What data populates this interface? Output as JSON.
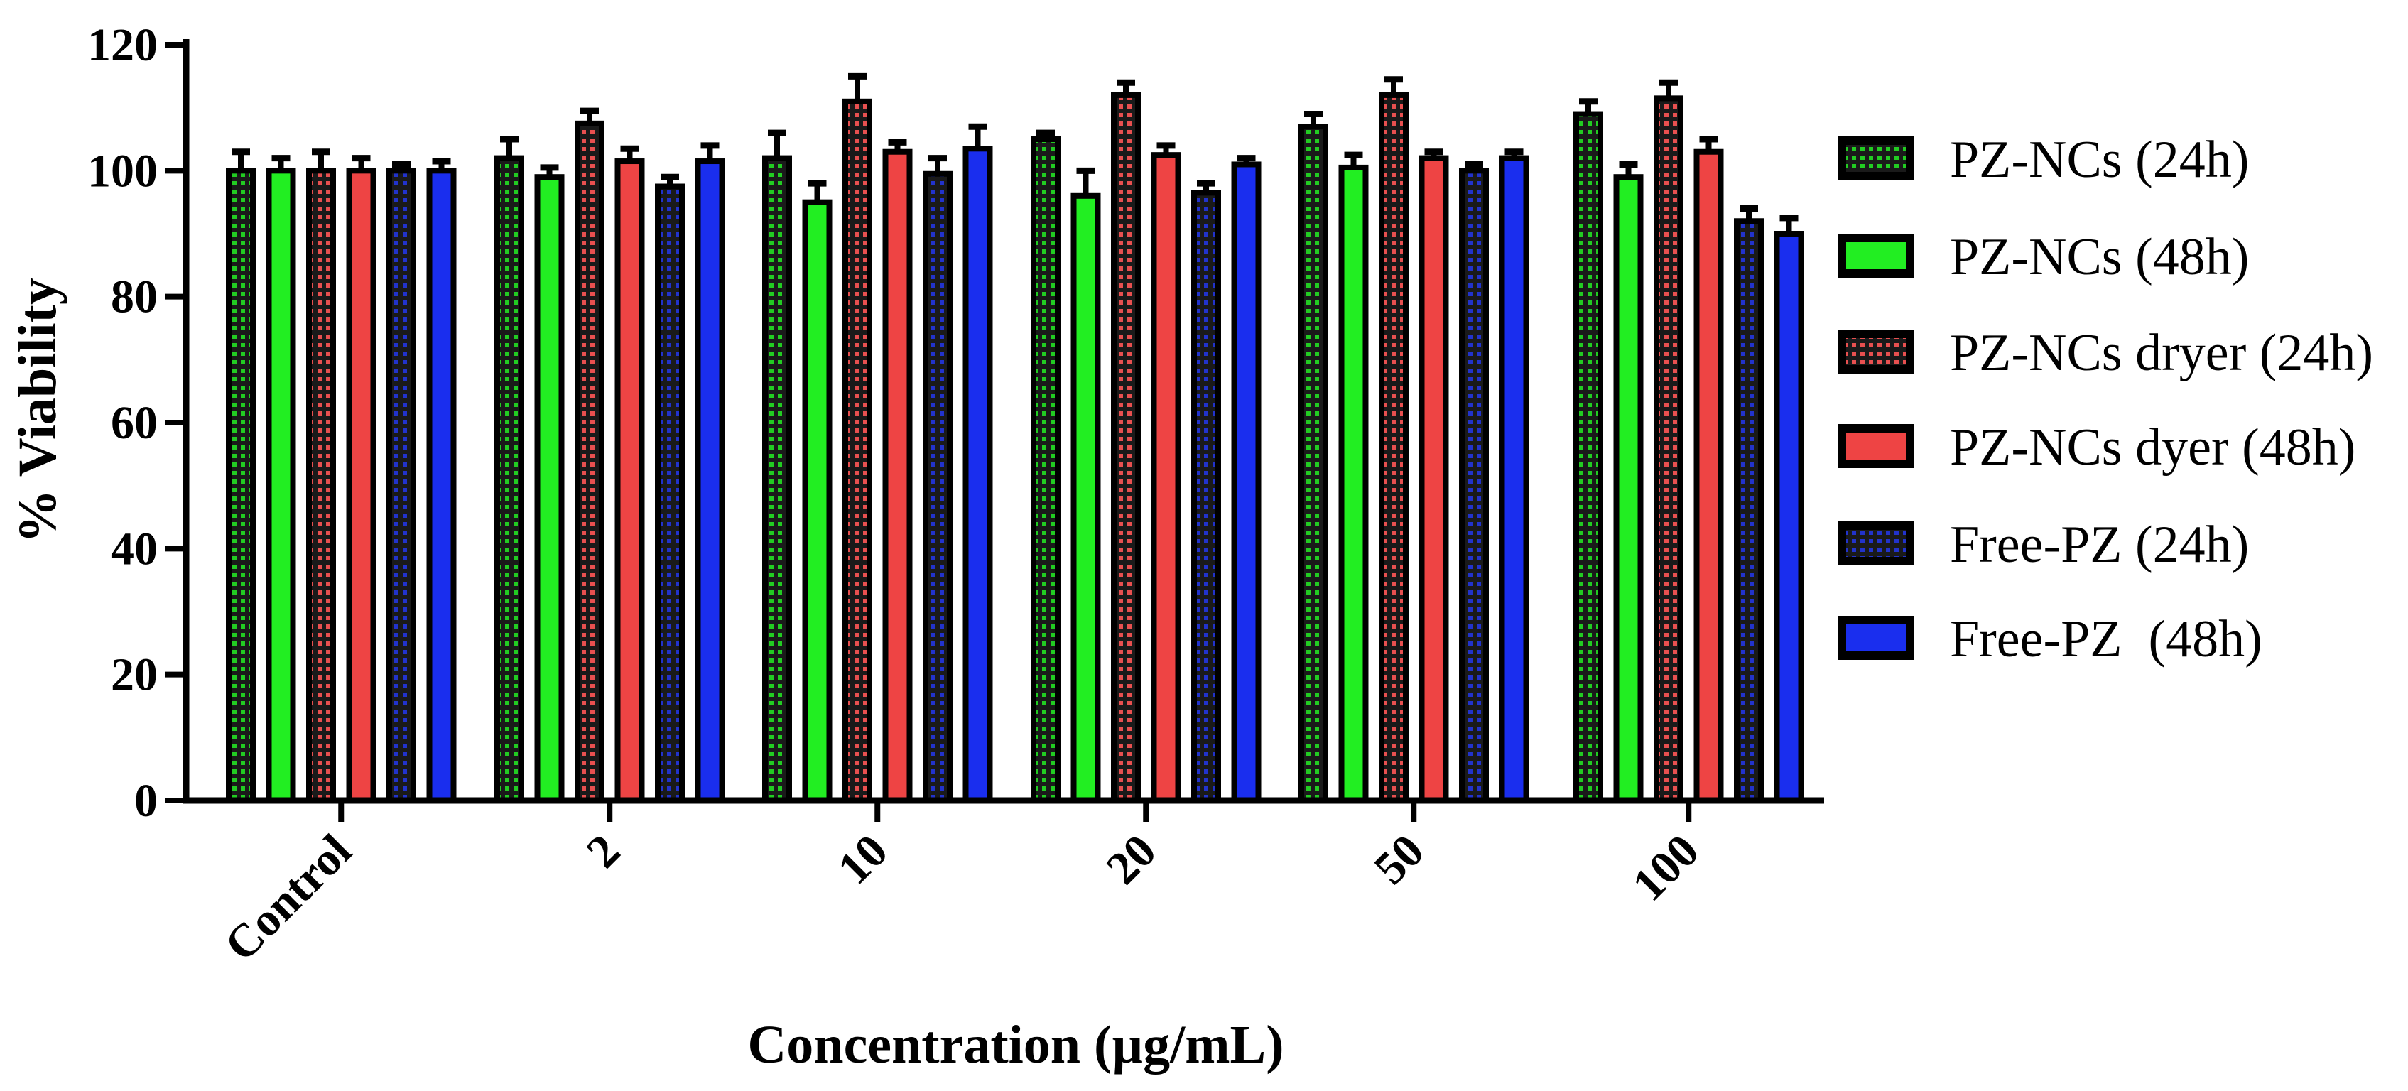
{
  "chart_data": {
    "type": "bar",
    "xlabel": "Concentration (µg/mL)",
    "ylabel": "% Viability",
    "ylim": [
      0,
      120
    ],
    "yticks": [
      "0",
      "20",
      "40",
      "60",
      "80",
      "100",
      "120"
    ],
    "categories": [
      "Control",
      "2",
      "10",
      "20",
      "50",
      "100"
    ],
    "legend_position": "right",
    "grid": false,
    "series": [
      {
        "name": "PZ-NCs (24h)",
        "color": "#22cc22",
        "pattern": "dotted",
        "values": [
          100,
          102,
          102,
          105,
          107,
          109
        ],
        "errors": [
          3,
          3,
          4,
          1,
          2,
          2
        ]
      },
      {
        "name": "PZ-NCs (48h)",
        "color": "#22ee22",
        "pattern": "solid",
        "values": [
          100,
          99,
          95,
          96,
          100.5,
          99
        ],
        "errors": [
          2,
          1.5,
          3,
          4,
          2,
          2
        ]
      },
      {
        "name": "PZ-NCs dryer (24h)",
        "color": "#e85050",
        "pattern": "dotted",
        "values": [
          100,
          107.5,
          111,
          112,
          112,
          111.5
        ],
        "errors": [
          3,
          2,
          4,
          2,
          2.5,
          2.5
        ]
      },
      {
        "name": "PZ-NCs dyer (48h)",
        "color": "#ee4444",
        "pattern": "solid",
        "values": [
          100,
          101.5,
          103,
          102.5,
          102,
          103
        ],
        "errors": [
          2,
          2,
          1.5,
          1.5,
          1,
          2
        ]
      },
      {
        "name": "Free-PZ (24h)",
        "color": "#2233cc",
        "pattern": "dotted",
        "values": [
          100,
          97.5,
          99.5,
          96.5,
          100,
          92
        ],
        "errors": [
          1,
          1.5,
          2.5,
          1.5,
          1,
          2
        ]
      },
      {
        "name": "Free-PZ  (48h)",
        "color": "#1a2eee",
        "pattern": "solid",
        "values": [
          100,
          101.5,
          103.5,
          101,
          102,
          90
        ],
        "errors": [
          1.5,
          2.5,
          3.5,
          1,
          1,
          2.5
        ]
      }
    ]
  }
}
